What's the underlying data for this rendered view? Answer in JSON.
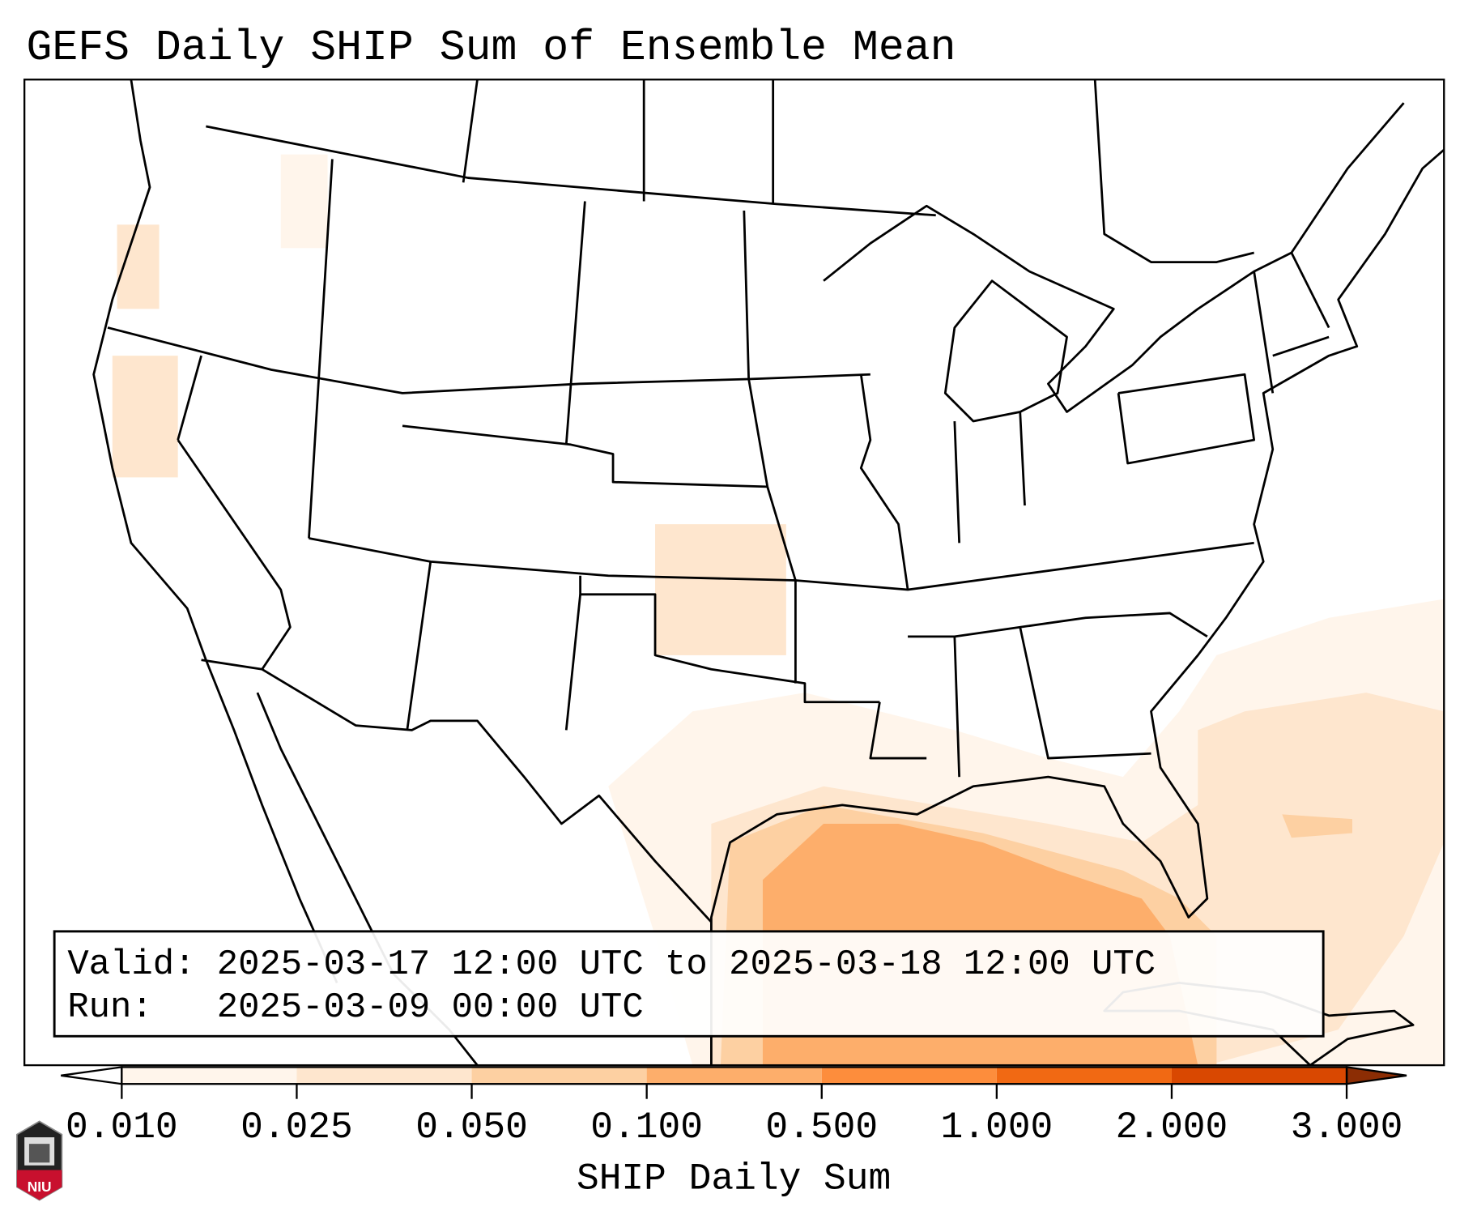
{
  "title": "GEFS Daily SHIP Sum of Ensemble Mean",
  "legend_box": {
    "valid_line": "Valid: 2025-03-17 12:00 UTC to 2025-03-18 12:00 UTC",
    "run_line": "Run:   2025-03-09 00:00 UTC"
  },
  "colorbar": {
    "label": "SHIP Daily Sum",
    "ticks": [
      "0.010",
      "0.025",
      "0.050",
      "0.100",
      "0.500",
      "1.000",
      "2.000",
      "3.000"
    ],
    "colors": [
      "#fff5eb",
      "#fee6ce",
      "#fdd0a2",
      "#fdae6b",
      "#fd8d3c",
      "#f16913",
      "#d94801",
      "#8c2d04"
    ]
  },
  "logo": {
    "text": "NIU"
  },
  "shading_colors": {
    "lightest": "#fff5eb",
    "light": "#fee6ce",
    "mid": "#fdd0a2",
    "strong": "#fdae6b"
  }
}
